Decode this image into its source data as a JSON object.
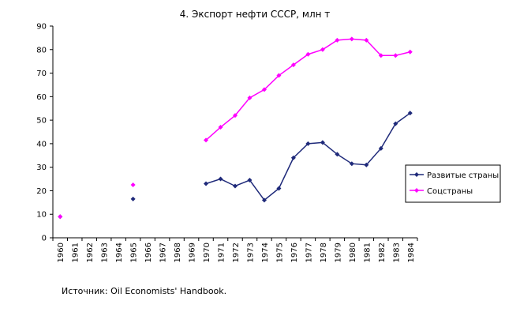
{
  "chart_data": {
    "type": "line",
    "title": "4. Экспорт нефти СССР, млн т",
    "xlabel": "",
    "ylabel": "",
    "categories": [
      "1960",
      "1961",
      "1962",
      "1963",
      "1964",
      "1965",
      "1966",
      "1967",
      "1968",
      "1969",
      "1970",
      "1971",
      "1972",
      "1973",
      "1974",
      "1975",
      "1976",
      "1977",
      "1978",
      "1979",
      "1980",
      "1981",
      "1982",
      "1983",
      "1984"
    ],
    "ylim": [
      0,
      90
    ],
    "yticks": [
      "0",
      "10",
      "20",
      "30",
      "40",
      "50",
      "60",
      "70",
      "80",
      "90"
    ],
    "grid": false,
    "legend_position": "right",
    "series": [
      {
        "name": "Развитые страны",
        "color": "#1f2a7a",
        "values": [
          9,
          null,
          null,
          null,
          null,
          16.5,
          null,
          null,
          null,
          null,
          23,
          25,
          22,
          24.5,
          16,
          21,
          34,
          40,
          40.5,
          35.5,
          31.5,
          31,
          38,
          48.5,
          53
        ]
      },
      {
        "name": "Соцстраны",
        "color": "#ff00ff",
        "values": [
          9,
          null,
          null,
          null,
          null,
          22.5,
          null,
          null,
          null,
          null,
          41.5,
          47,
          52,
          59.5,
          63,
          69,
          73.5,
          78,
          80,
          84,
          84.5,
          84,
          77.5,
          77.5,
          79
        ]
      }
    ]
  },
  "source_note": "Источник: Oil Economists' Handbook."
}
